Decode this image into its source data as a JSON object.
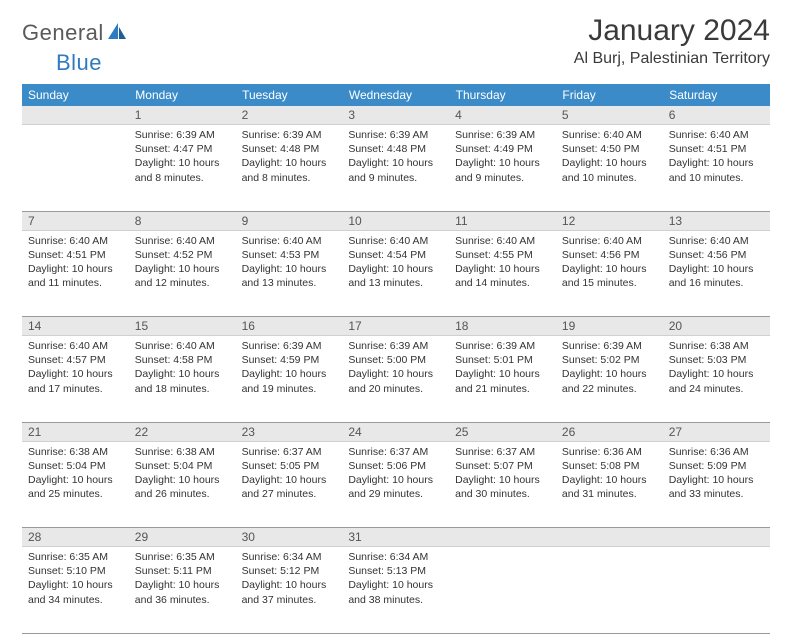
{
  "brand": {
    "part1": "General",
    "part2": "Blue"
  },
  "title": "January 2024",
  "location": "Al Burj, Palestinian Territory",
  "colors": {
    "header_bg": "#3b8bc9",
    "header_fg": "#ffffff",
    "daynum_bg": "#e8e8e8",
    "border": "#9a9a9a",
    "brand_gray": "#5a5a5a",
    "brand_blue": "#2f7bbf"
  },
  "weekdays": [
    "Sunday",
    "Monday",
    "Tuesday",
    "Wednesday",
    "Thursday",
    "Friday",
    "Saturday"
  ],
  "first_weekday_offset": 1,
  "days": [
    {
      "n": 1,
      "sunrise": "6:39 AM",
      "sunset": "4:47 PM",
      "daylight": "10 hours and 8 minutes."
    },
    {
      "n": 2,
      "sunrise": "6:39 AM",
      "sunset": "4:48 PM",
      "daylight": "10 hours and 8 minutes."
    },
    {
      "n": 3,
      "sunrise": "6:39 AM",
      "sunset": "4:48 PM",
      "daylight": "10 hours and 9 minutes."
    },
    {
      "n": 4,
      "sunrise": "6:39 AM",
      "sunset": "4:49 PM",
      "daylight": "10 hours and 9 minutes."
    },
    {
      "n": 5,
      "sunrise": "6:40 AM",
      "sunset": "4:50 PM",
      "daylight": "10 hours and 10 minutes."
    },
    {
      "n": 6,
      "sunrise": "6:40 AM",
      "sunset": "4:51 PM",
      "daylight": "10 hours and 10 minutes."
    },
    {
      "n": 7,
      "sunrise": "6:40 AM",
      "sunset": "4:51 PM",
      "daylight": "10 hours and 11 minutes."
    },
    {
      "n": 8,
      "sunrise": "6:40 AM",
      "sunset": "4:52 PM",
      "daylight": "10 hours and 12 minutes."
    },
    {
      "n": 9,
      "sunrise": "6:40 AM",
      "sunset": "4:53 PM",
      "daylight": "10 hours and 13 minutes."
    },
    {
      "n": 10,
      "sunrise": "6:40 AM",
      "sunset": "4:54 PM",
      "daylight": "10 hours and 13 minutes."
    },
    {
      "n": 11,
      "sunrise": "6:40 AM",
      "sunset": "4:55 PM",
      "daylight": "10 hours and 14 minutes."
    },
    {
      "n": 12,
      "sunrise": "6:40 AM",
      "sunset": "4:56 PM",
      "daylight": "10 hours and 15 minutes."
    },
    {
      "n": 13,
      "sunrise": "6:40 AM",
      "sunset": "4:56 PM",
      "daylight": "10 hours and 16 minutes."
    },
    {
      "n": 14,
      "sunrise": "6:40 AM",
      "sunset": "4:57 PM",
      "daylight": "10 hours and 17 minutes."
    },
    {
      "n": 15,
      "sunrise": "6:40 AM",
      "sunset": "4:58 PM",
      "daylight": "10 hours and 18 minutes."
    },
    {
      "n": 16,
      "sunrise": "6:39 AM",
      "sunset": "4:59 PM",
      "daylight": "10 hours and 19 minutes."
    },
    {
      "n": 17,
      "sunrise": "6:39 AM",
      "sunset": "5:00 PM",
      "daylight": "10 hours and 20 minutes."
    },
    {
      "n": 18,
      "sunrise": "6:39 AM",
      "sunset": "5:01 PM",
      "daylight": "10 hours and 21 minutes."
    },
    {
      "n": 19,
      "sunrise": "6:39 AM",
      "sunset": "5:02 PM",
      "daylight": "10 hours and 22 minutes."
    },
    {
      "n": 20,
      "sunrise": "6:38 AM",
      "sunset": "5:03 PM",
      "daylight": "10 hours and 24 minutes."
    },
    {
      "n": 21,
      "sunrise": "6:38 AM",
      "sunset": "5:04 PM",
      "daylight": "10 hours and 25 minutes."
    },
    {
      "n": 22,
      "sunrise": "6:38 AM",
      "sunset": "5:04 PM",
      "daylight": "10 hours and 26 minutes."
    },
    {
      "n": 23,
      "sunrise": "6:37 AM",
      "sunset": "5:05 PM",
      "daylight": "10 hours and 27 minutes."
    },
    {
      "n": 24,
      "sunrise": "6:37 AM",
      "sunset": "5:06 PM",
      "daylight": "10 hours and 29 minutes."
    },
    {
      "n": 25,
      "sunrise": "6:37 AM",
      "sunset": "5:07 PM",
      "daylight": "10 hours and 30 minutes."
    },
    {
      "n": 26,
      "sunrise": "6:36 AM",
      "sunset": "5:08 PM",
      "daylight": "10 hours and 31 minutes."
    },
    {
      "n": 27,
      "sunrise": "6:36 AM",
      "sunset": "5:09 PM",
      "daylight": "10 hours and 33 minutes."
    },
    {
      "n": 28,
      "sunrise": "6:35 AM",
      "sunset": "5:10 PM",
      "daylight": "10 hours and 34 minutes."
    },
    {
      "n": 29,
      "sunrise": "6:35 AM",
      "sunset": "5:11 PM",
      "daylight": "10 hours and 36 minutes."
    },
    {
      "n": 30,
      "sunrise": "6:34 AM",
      "sunset": "5:12 PM",
      "daylight": "10 hours and 37 minutes."
    },
    {
      "n": 31,
      "sunrise": "6:34 AM",
      "sunset": "5:13 PM",
      "daylight": "10 hours and 38 minutes."
    }
  ],
  "labels": {
    "sunrise": "Sunrise:",
    "sunset": "Sunset:",
    "daylight": "Daylight:"
  }
}
